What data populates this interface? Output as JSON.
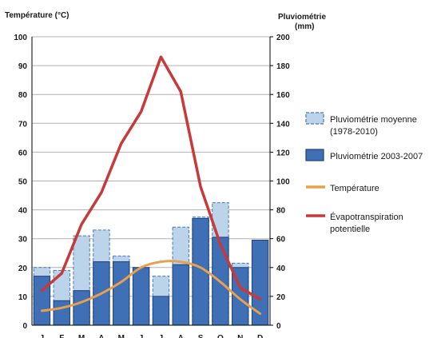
{
  "chart_data": {
    "type": "bar",
    "left_axis_title": "Température (°C)",
    "right_axis_title_line1": "Pluviométrie",
    "right_axis_title_line2": "(mm)",
    "left_ticks": [
      0,
      10,
      20,
      30,
      40,
      50,
      60,
      70,
      80,
      90,
      100
    ],
    "right_ticks": [
      0,
      20,
      40,
      60,
      80,
      100,
      120,
      140,
      160,
      180,
      200
    ],
    "ylim_left": [
      0,
      100
    ],
    "ylim_right": [
      0,
      200
    ],
    "categories": [
      "J",
      "F",
      "M",
      "A",
      "M",
      "J",
      "J",
      "A",
      "S",
      "O",
      "N",
      "D"
    ],
    "grid": true,
    "legend_position": "right",
    "series": [
      {
        "name": "Pluviométrie moyenne (1978-2010)",
        "legend_line1": "Pluviométrie moyenne",
        "legend_line2": "(1978-2010)",
        "type": "bar",
        "axis": "right",
        "color": "#bcd4ea",
        "border": "#4a78b8",
        "values": [
          40,
          38,
          62,
          66,
          48,
          40,
          34,
          68,
          75,
          85,
          43,
          0
        ]
      },
      {
        "name": "Pluviométrie 2003-2007",
        "legend_line1": "Pluviométrie 2003-2007",
        "type": "bar",
        "axis": "right",
        "color": "#3f6fb5",
        "border": "#1f3f78",
        "values": [
          34,
          17,
          24,
          44,
          44,
          40,
          20,
          42,
          74,
          61,
          40,
          59
        ]
      },
      {
        "name": "Température",
        "legend_line1": "Température",
        "type": "line",
        "axis": "left",
        "color": "#e8a04c",
        "values": [
          5,
          6,
          8,
          11,
          15,
          20,
          22,
          22,
          20,
          15,
          9,
          4
        ]
      },
      {
        "name": "Évapotranspiration potentielle",
        "legend_line1": "Évapotranspiration",
        "legend_line2": "potentielle",
        "type": "line",
        "axis": "left",
        "color": "#c8393a",
        "values": [
          12,
          18,
          35,
          46,
          63,
          74,
          93,
          81,
          48,
          28,
          13,
          9
        ]
      }
    ]
  }
}
